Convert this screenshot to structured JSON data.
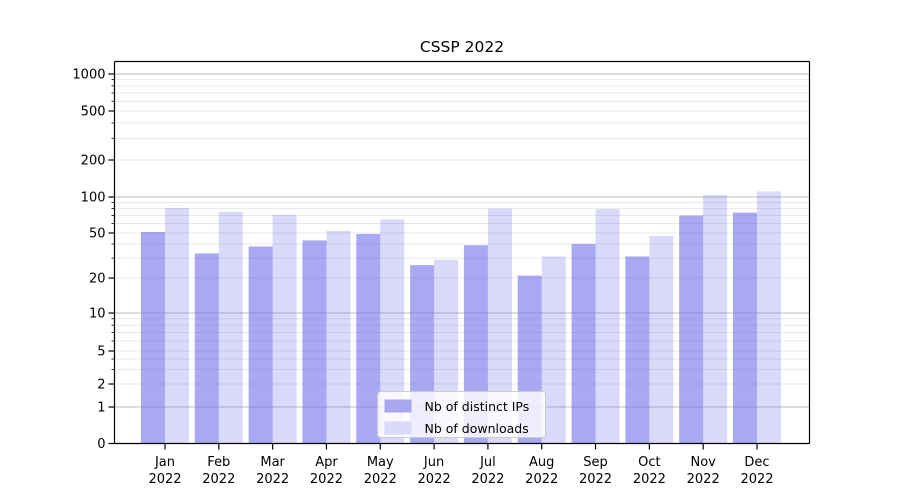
{
  "chart_data": {
    "type": "bar",
    "title": "CSSP 2022",
    "categories": [
      "Jan",
      "Feb",
      "Mar",
      "Apr",
      "May",
      "Jun",
      "Jul",
      "Aug",
      "Sep",
      "Oct",
      "Nov",
      "Dec"
    ],
    "x_year_label": "2022",
    "series": [
      {
        "name": "Nb of distinct IPs",
        "color": "rgba(110,110,235,0.60)",
        "color_hex": "#a8a8f0",
        "values": [
          51,
          33,
          38,
          43,
          49,
          26,
          39,
          21,
          40,
          31,
          70,
          74
        ]
      },
      {
        "name": "Nb of downloads",
        "color": "rgba(110,110,235,0.26)",
        "color_hex": "#d9d9fa",
        "values": [
          81,
          75,
          71,
          52,
          65,
          29,
          80,
          31,
          79,
          47,
          104,
          111
        ]
      }
    ],
    "yscale": "symlog",
    "yticks": [
      0,
      1,
      2,
      5,
      10,
      20,
      50,
      100,
      200,
      500,
      1000
    ],
    "ylim": [
      0,
      1270
    ],
    "grid": "horizontal-major-and-minor",
    "legend_position": "lower center",
    "colors": {
      "grid_major": "#bdbdbd",
      "grid_minor": "#e9e9e9",
      "spine": "#000000",
      "legend_border": "#cccccc",
      "legend_bg": "rgba(255,255,255,0.8)"
    }
  }
}
